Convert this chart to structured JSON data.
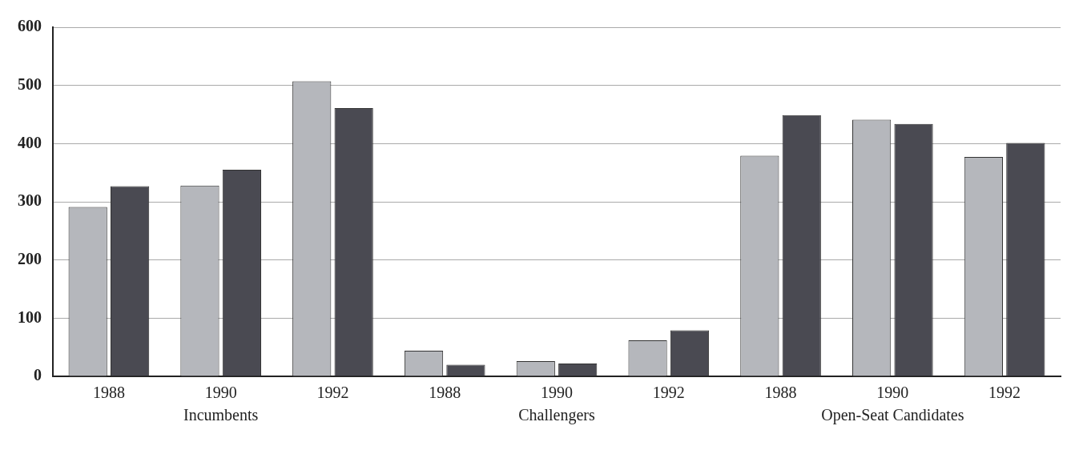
{
  "chart_data": {
    "type": "bar",
    "categories": [
      "1988",
      "1990",
      "1992",
      "1988",
      "1990",
      "1992",
      "1988",
      "1990",
      "1992"
    ],
    "series": [
      {
        "color": "#b5b7bc",
        "values": [
          291,
          328,
          507,
          44,
          26,
          62,
          379,
          441,
          377
        ]
      },
      {
        "color": "#4a4a52",
        "values": [
          327,
          355,
          461,
          20,
          22,
          79,
          449,
          434,
          401
        ]
      }
    ],
    "annotations": [
      "Incumbents",
      "Challengers",
      "Open-Seat Candidates"
    ],
    "ylim": [
      0,
      600
    ],
    "yticks": [
      0,
      100,
      200,
      300,
      400,
      500,
      600
    ],
    "grid": "y",
    "legend": false
  }
}
